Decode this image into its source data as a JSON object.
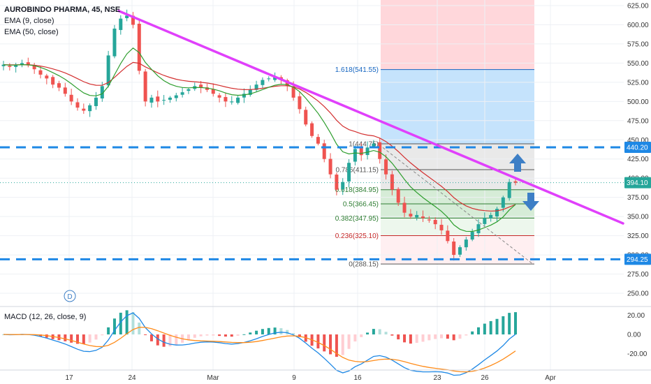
{
  "legend": {
    "symbol": "AUROBINDO PHARMA, 45, NSE",
    "ema9": "EMA (9, close)",
    "ema50": "EMA (50, close)",
    "macd": "MACD (12, 26, close, 9)"
  },
  "colors": {
    "candle_up": "#26a69a",
    "candle_down": "#ef5350",
    "ema9": "#2e9e2e",
    "ema50": "#d32f2f",
    "trendline": "#e040fb",
    "level_line": "#1e88e5",
    "macd_line": "#1e88e5",
    "signal_line": "#ff8c1a",
    "arrow": "#3d7fc6",
    "current_price": "#26a69a"
  },
  "chart_data": {
    "type": "candlestick",
    "main_axis": {
      "ylim": [
        237.5,
        630
      ],
      "tick_labels": [
        "250.00",
        "275.00",
        "300.00",
        "325.00",
        "350.00",
        "375.00",
        "400.00",
        "425.00",
        "450.00",
        "475.00",
        "500.00",
        "525.00",
        "550.00",
        "575.00",
        "600.00",
        "625.00"
      ]
    },
    "x_axis": {
      "tick_labels": [
        "17",
        "24",
        "Mar",
        "9",
        "16",
        "23",
        "26",
        "Apr"
      ]
    },
    "price_levels": [
      {
        "label": "440.20",
        "value": 440.2
      },
      {
        "label": "294.25",
        "value": 294.25
      }
    ],
    "current_price": {
      "label": "394.10",
      "value": 394.1
    },
    "fibonacci": [
      {
        "label": "1.618(541.55)",
        "value": 541.55,
        "color": "#1565c0"
      },
      {
        "label": "1(444.75)",
        "value": 444.75,
        "color": "#555555"
      },
      {
        "label": "0.786(411.15)",
        "value": 411.15,
        "color": "#555555"
      },
      {
        "label": "0.618(384.95)",
        "value": 384.95,
        "color": "#2e7d32"
      },
      {
        "label": "0.5(366.45)",
        "value": 366.45,
        "color": "#2e7d32"
      },
      {
        "label": "0.382(347.95)",
        "value": 347.95,
        "color": "#2e7d32"
      },
      {
        "label": "0.236(325.10)",
        "value": 325.1,
        "color": "#c62828"
      },
      {
        "label": "0(288.15)",
        "value": 288.15,
        "color": "#555555"
      }
    ],
    "trendline": {
      "start": [
        0.07,
        618
      ],
      "end": [
        1.0,
        370
      ]
    },
    "macd_axis": {
      "ylim": [
        -32,
        27
      ],
      "tick_labels": [
        "20.00",
        "0.00",
        "-20.00"
      ]
    },
    "annotations": [
      "D"
    ],
    "ohlc_close_estimates": [
      548,
      545,
      548,
      550,
      547,
      542,
      535,
      530,
      522,
      518,
      510,
      500,
      492,
      488,
      495,
      505,
      520,
      560,
      595,
      608,
      612,
      600,
      540,
      500,
      505,
      500,
      502,
      505,
      508,
      512,
      516,
      520,
      518,
      515,
      510,
      505,
      500,
      500,
      505,
      510,
      516,
      522,
      528,
      530,
      532,
      528,
      520,
      505,
      490,
      470,
      455,
      445,
      425,
      405,
      385,
      395,
      420,
      438,
      430,
      440,
      445,
      425,
      405,
      385,
      368,
      355,
      350,
      352,
      348,
      345,
      340,
      332,
      318,
      300,
      310,
      320,
      330,
      340,
      348,
      352,
      360,
      375,
      395,
      394
    ]
  }
}
